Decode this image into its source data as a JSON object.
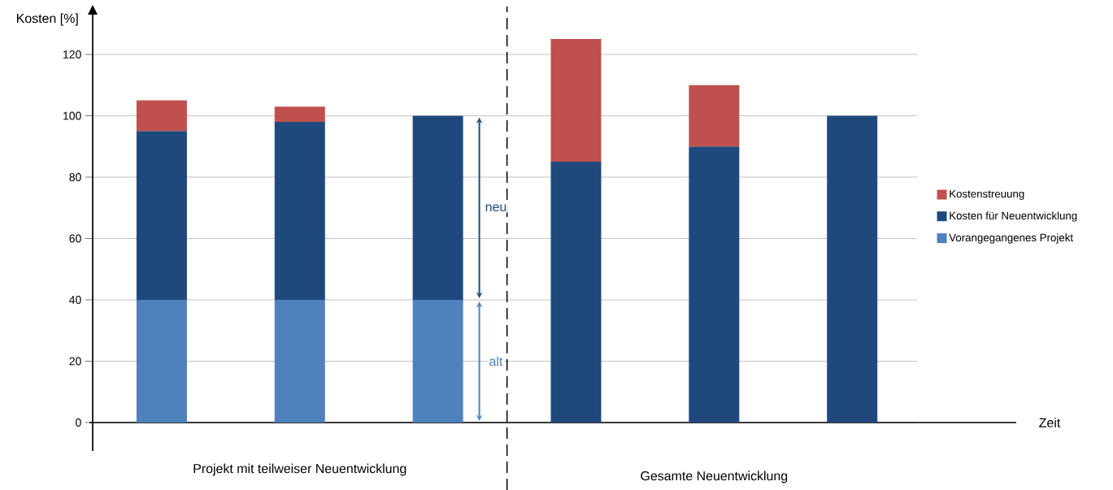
{
  "chart_data": {
    "type": "bar",
    "stacked": true,
    "ylabel": "Kosten [%]",
    "categories": [
      null,
      null,
      null,
      null,
      null,
      null
    ],
    "series": [
      {
        "name": "Vorangegangenes Projekt",
        "color": "#4f81bd",
        "values": [
          40,
          40,
          40,
          null,
          null,
          null
        ]
      },
      {
        "name": "Kosten für Neuentwicklung",
        "color": "#1f497d",
        "values": [
          55,
          58,
          60,
          85,
          90,
          100
        ]
      },
      {
        "name": "Kostenstreuung",
        "color": "#c0504d",
        "values": [
          10,
          5,
          null,
          40,
          20,
          null
        ]
      }
    ],
    "ylim": [
      0,
      133
    ],
    "yticks": [
      0,
      20,
      40,
      60,
      80,
      100,
      120
    ],
    "grid": "y",
    "legend": "right",
    "annotations": [
      "neu",
      "alt",
      "Projekt mit teilweiser Neuentwicklung",
      "Gesamte Neuentwicklung",
      "Zeit"
    ]
  }
}
